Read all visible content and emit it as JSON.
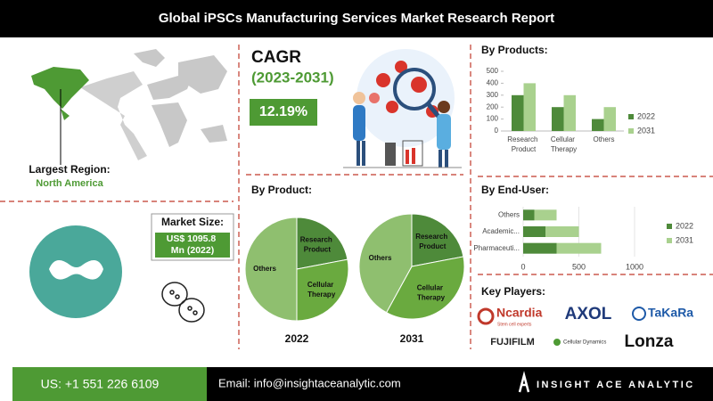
{
  "header": {
    "title": "Global iPSCs Manufacturing Services Market Research Report"
  },
  "region": {
    "label": "Largest Region:",
    "value": "North America"
  },
  "cagr": {
    "label": "CAGR",
    "period": "(2023-2031)",
    "value": "12.19%"
  },
  "market_size": {
    "label": "Market Size:",
    "value": "US$ 1095.8 Mn (2022)"
  },
  "sections": {
    "by_product": "By Product:",
    "key_players": "Key Players:"
  },
  "key_players": {
    "ncardia": "Ncardia",
    "ncardia_tagline": "Stem cell experts",
    "axol": "AXOL",
    "takara": "TaKaRa",
    "fujifilm": "FUJIFILM",
    "cdi": "Cellular Dynamics",
    "lonza": "Lonza"
  },
  "footer": {
    "phone": "US: +1 551 226 6109",
    "email": "Email: info@insightaceanalytic.com",
    "brand": "INSIGHT ACE ANALYTIC"
  },
  "chart_data": [
    {
      "type": "bar",
      "title": "By Products:",
      "categories": [
        "Research Product",
        "Cellular Therapy",
        "Others"
      ],
      "series": [
        {
          "name": "2022",
          "color": "#4e8a3a",
          "values": [
            300,
            200,
            100
          ]
        },
        {
          "name": "2031",
          "color": "#a9d18e",
          "values": [
            400,
            300,
            200
          ]
        }
      ],
      "ylim": [
        0,
        500
      ],
      "yticks": [
        0,
        100,
        200,
        300,
        400,
        500
      ],
      "legend": "right"
    },
    {
      "type": "bar",
      "orientation": "horizontal",
      "stacked": true,
      "title": "By End-User:",
      "categories": [
        "Others",
        "Academic...",
        "Pharmaceuti..."
      ],
      "series": [
        {
          "name": "2022",
          "color": "#4e8a3a",
          "values": [
            100,
            200,
            300
          ]
        },
        {
          "name": "2031",
          "color": "#a9d18e",
          "values": [
            200,
            300,
            400
          ]
        }
      ],
      "xlim": [
        0,
        1000
      ],
      "xticks": [
        0,
        500,
        1000
      ],
      "grid": true,
      "legend": "right"
    },
    {
      "type": "pie",
      "title": "2022",
      "categories": [
        "Research Product",
        "Cellular Therapy",
        "Others"
      ],
      "values": [
        22,
        28,
        50
      ],
      "colors": [
        "#4e8a3a",
        "#6aaa3f",
        "#8fbf6f"
      ]
    },
    {
      "type": "pie",
      "title": "2031",
      "categories": [
        "Research Product",
        "Cellular Therapy",
        "Others"
      ],
      "values": [
        22,
        36,
        42
      ],
      "colors": [
        "#4e8a3a",
        "#6aaa3f",
        "#8fbf6f"
      ]
    }
  ]
}
